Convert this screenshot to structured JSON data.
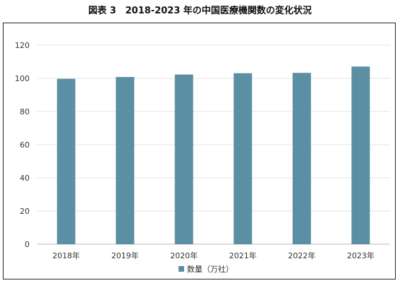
{
  "title": "図表 3　2018-2023 年の中国医療機関数の変化状況",
  "chart_data": {
    "type": "bar",
    "categories": [
      "2018年",
      "2019年",
      "2020年",
      "2021年",
      "2022年",
      "2023年"
    ],
    "series": [
      {
        "name": "数量（万社）",
        "values": [
          99.7,
          100.8,
          102.3,
          103.1,
          103.3,
          107.1
        ]
      }
    ],
    "ylim": [
      0,
      120
    ],
    "yticks": [
      0,
      20,
      40,
      60,
      80,
      100,
      120
    ],
    "grid": true,
    "legend": "bottom",
    "bar_color": "#5b8fa3"
  }
}
